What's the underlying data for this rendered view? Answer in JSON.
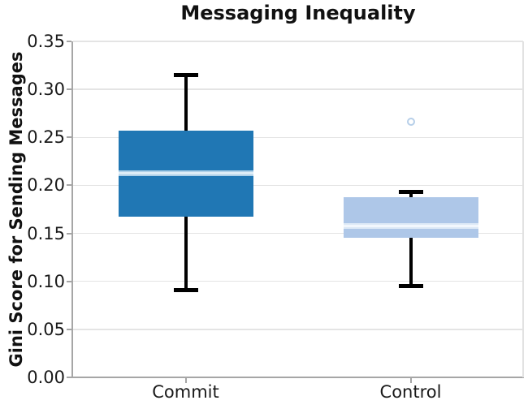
{
  "chart_data": {
    "type": "box",
    "title": "Messaging Inequality",
    "ylabel": "Gini Score for Sending Messages",
    "xlabel": "",
    "legend": "none",
    "grid": "horizontal",
    "y_axis": {
      "min": 0,
      "max": 0.35,
      "tick_labels": [
        "0.00",
        "0.05",
        "0.10",
        "0.15",
        "0.20",
        "0.25",
        "0.30",
        "0.35"
      ]
    },
    "categories": [
      "Commit",
      "Control"
    ],
    "boxes": [
      {
        "category": "Commit",
        "whisker_low": 0.091,
        "q1": 0.167,
        "median": 0.213,
        "q3": 0.257,
        "whisker_high": 0.315,
        "outliers": [],
        "fill_color": "#2077b4",
        "median_outer_color": "#aed0e8",
        "median_inner_color": "#ddecf6"
      },
      {
        "category": "Control",
        "whisker_low": 0.095,
        "q1": 0.145,
        "median": 0.158,
        "q3": 0.188,
        "whisker_high": 0.193,
        "outliers": [
          0.266
        ],
        "fill_color": "#aec7e8",
        "median_outer_color": "#dde9f6",
        "median_inner_color": "#f2f7fd"
      }
    ],
    "style": {
      "whisker_color": "#000000",
      "outlier_color": "#b7cfe9",
      "gridline_color": "#e4e4e4",
      "axis_color": "#a6a6a6",
      "frame_color": "#e2e2e2",
      "background_color": "#ffffff"
    }
  }
}
